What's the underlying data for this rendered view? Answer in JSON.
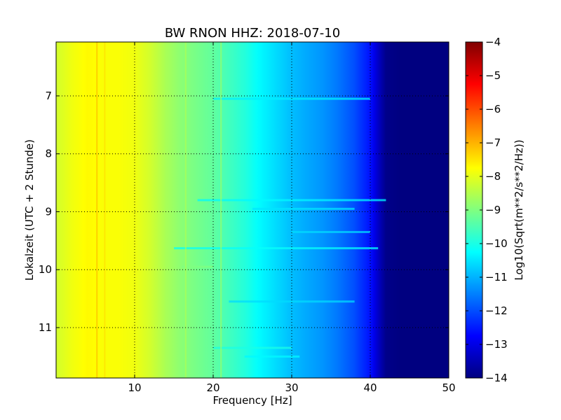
{
  "chart_data": {
    "type": "heatmap",
    "title": "BW RNON HHZ: 2018-07-10",
    "xlabel": "Frequency [Hz]",
    "ylabel": "Lokalzeit (UTC + 2 Stunde)",
    "xlim": [
      0,
      50
    ],
    "ylim": [
      6.07,
      11.87
    ],
    "x_ticks": [
      {
        "value": 10,
        "label": "10"
      },
      {
        "value": 20,
        "label": "20"
      },
      {
        "value": 30,
        "label": "30"
      },
      {
        "value": 40,
        "label": "40"
      },
      {
        "value": 50,
        "label": "50"
      }
    ],
    "y_ticks": [
      {
        "value": 7,
        "label": "7"
      },
      {
        "value": 8,
        "label": "8"
      },
      {
        "value": 9,
        "label": "9"
      },
      {
        "value": 10,
        "label": "10"
      },
      {
        "value": 11,
        "label": "11"
      }
    ],
    "y_inverted": true,
    "grid": true,
    "colormap": "jet",
    "colorbar": {
      "label": "Log10(Sqrt(m**2/s**2/Hz))",
      "range": [
        -14,
        -4
      ],
      "ticks": [
        {
          "value": -4,
          "label": "−4"
        },
        {
          "value": -5,
          "label": "−5"
        },
        {
          "value": -6,
          "label": "−6"
        },
        {
          "value": -7,
          "label": "−7"
        },
        {
          "value": -8,
          "label": "−8"
        },
        {
          "value": -9,
          "label": "−9"
        },
        {
          "value": -10,
          "label": "−10"
        },
        {
          "value": -11,
          "label": "−11"
        },
        {
          "value": -12,
          "label": "−12"
        },
        {
          "value": -13,
          "label": "−13"
        },
        {
          "value": -14,
          "label": "−14"
        }
      ]
    },
    "spectral_profile": {
      "frequency_hz": [
        0,
        2,
        4,
        6,
        8,
        10,
        12,
        14,
        16,
        18,
        20,
        22,
        24,
        26,
        28,
        30,
        32,
        34,
        36,
        38,
        40,
        41,
        42,
        44,
        46,
        48,
        50
      ],
      "log10_amplitude": [
        -8.2,
        -7.9,
        -7.7,
        -7.8,
        -7.8,
        -7.9,
        -8.2,
        -8.6,
        -8.9,
        -9.1,
        -9.3,
        -9.6,
        -9.9,
        -10.3,
        -10.6,
        -10.9,
        -11.1,
        -11.3,
        -11.6,
        -12.0,
        -12.6,
        -13.3,
        -13.9,
        -14.0,
        -14.0,
        -14.0,
        -14.0
      ]
    },
    "horizontal_bands": [
      {
        "time": 7.05,
        "f_start": 20,
        "f_end": 40,
        "log10_amplitude": -10.4
      },
      {
        "time": 8.8,
        "f_start": 18,
        "f_end": 42,
        "log10_amplitude": -10.3
      },
      {
        "time": 8.95,
        "f_start": 25,
        "f_end": 38,
        "log10_amplitude": -10.5
      },
      {
        "time": 9.35,
        "f_start": 30,
        "f_end": 40,
        "log10_amplitude": -10.6
      },
      {
        "time": 9.63,
        "f_start": 15,
        "f_end": 41,
        "log10_amplitude": -10.2
      },
      {
        "time": 9.95,
        "f_start": 16,
        "f_end": 20,
        "log10_amplitude": -9.0
      },
      {
        "time": 10.55,
        "f_start": 22,
        "f_end": 38,
        "log10_amplitude": -10.6
      },
      {
        "time": 11.35,
        "f_start": 20,
        "f_end": 30,
        "log10_amplitude": -10.0
      },
      {
        "time": 11.5,
        "f_start": 24,
        "f_end": 31,
        "log10_amplitude": -10.3
      }
    ],
    "vertical_lines": [
      {
        "frequency": 5.2,
        "log10_amplitude": -7.0
      },
      {
        "frequency": 6.2,
        "log10_amplitude": -7.4
      },
      {
        "frequency": 16.5,
        "log10_amplitude": -8.5
      },
      {
        "frequency": 21.0,
        "log10_amplitude": -8.6
      }
    ]
  }
}
